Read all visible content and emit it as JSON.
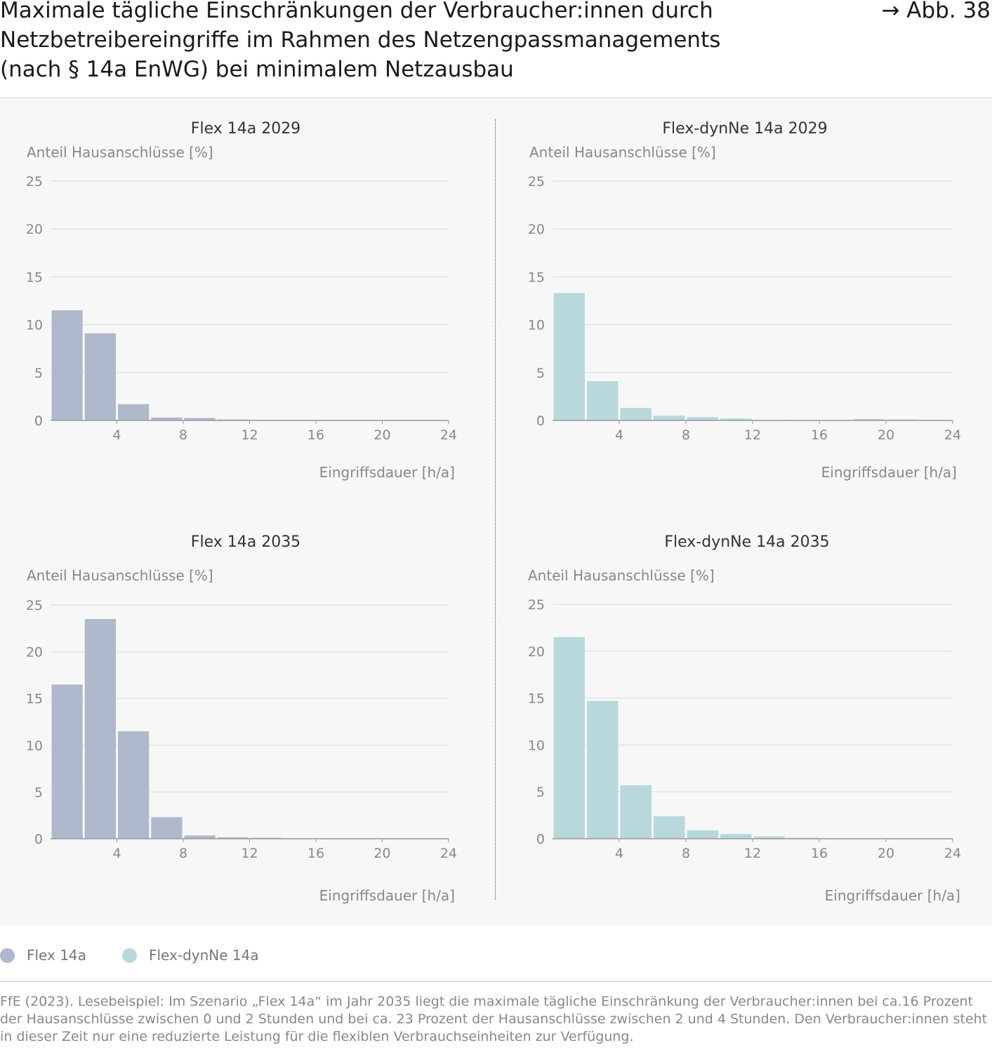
{
  "header": {
    "title": "Maximale tägliche Einschränkungen der Verbraucher:innen durch Netzbetreibereingriffe im Rahmen des Netzengpassmanagements (nach § 14a EnWG) bei minimalem Netzausbau",
    "figure_ref": "→ Abb. 38"
  },
  "colors": {
    "flex": "#b0b8cc",
    "dynne": "#b8d8dc",
    "grid": "#e4e4e4",
    "axis": "#999999"
  },
  "legend": {
    "items": [
      {
        "label": "Flex 14a",
        "color": "#b0b8cc"
      },
      {
        "label": "Flex-dynNe 14a",
        "color": "#b8d8dc"
      }
    ]
  },
  "chart_data": [
    {
      "type": "bar",
      "title": "Flex 14a 2029",
      "ylabel": "Anteil Hausanschlüsse [%]",
      "xlabel": "Eingriffsdauer [h/a]",
      "xlim": [
        0,
        24
      ],
      "ylim": [
        0,
        25
      ],
      "xticks": [
        4,
        8,
        12,
        16,
        20,
        24
      ],
      "yticks": [
        0,
        5,
        10,
        15,
        20,
        25
      ],
      "bin_width": 2,
      "series": [
        {
          "color": "#b0b8cc",
          "bins": [
            [
              0,
              11.5
            ],
            [
              2,
              9.1
            ],
            [
              4,
              1.7
            ],
            [
              6,
              0.3
            ],
            [
              8,
              0.25
            ],
            [
              10,
              0.1
            ]
          ]
        }
      ]
    },
    {
      "type": "bar",
      "title": "Flex-dynNe 14a 2029",
      "ylabel": "Anteil Hausanschlüsse [%]",
      "xlabel": "Eingriffsdauer [h/a]",
      "xlim": [
        0,
        24
      ],
      "ylim": [
        0,
        25
      ],
      "xticks": [
        4,
        8,
        12,
        16,
        20,
        24
      ],
      "yticks": [
        0,
        5,
        10,
        15,
        20,
        25
      ],
      "bin_width": 2,
      "series": [
        {
          "color": "#b8d8dc",
          "bins": [
            [
              0,
              13.3
            ],
            [
              2,
              4.1
            ],
            [
              4,
              1.3
            ],
            [
              6,
              0.5
            ],
            [
              8,
              0.35
            ],
            [
              10,
              0.2
            ],
            [
              12,
              0.05
            ],
            [
              14,
              0.05
            ],
            [
              16,
              0.05
            ],
            [
              18,
              0.15
            ],
            [
              20,
              0.1
            ]
          ]
        }
      ]
    },
    {
      "type": "bar",
      "title": "Flex 14a 2035",
      "ylabel": "Anteil Hausanschlüsse [%]",
      "xlabel": "Eingriffsdauer [h/a]",
      "xlim": [
        0,
        24
      ],
      "ylim": [
        0,
        25
      ],
      "xticks": [
        4,
        8,
        12,
        16,
        20,
        24
      ],
      "yticks": [
        0,
        5,
        10,
        15,
        20,
        25
      ],
      "bin_width": 2,
      "series": [
        {
          "color": "#b0b8cc",
          "bins": [
            [
              0,
              16.5
            ],
            [
              2,
              23.5
            ],
            [
              4,
              11.5
            ],
            [
              6,
              2.3
            ],
            [
              8,
              0.35
            ],
            [
              10,
              0.15
            ],
            [
              12,
              0.1
            ],
            [
              14,
              0.05
            ],
            [
              16,
              0.05
            ]
          ]
        }
      ]
    },
    {
      "type": "bar",
      "title": "Flex-dynNe 14a 2035",
      "ylabel": "Anteil Hausanschlüsse [%]",
      "xlabel": "Eingriffsdauer [h/a]",
      "xlim": [
        0,
        24
      ],
      "ylim": [
        0,
        25
      ],
      "xticks": [
        4,
        8,
        12,
        16,
        20,
        24
      ],
      "yticks": [
        0,
        5,
        10,
        15,
        20,
        25
      ],
      "bin_width": 2,
      "series": [
        {
          "color": "#b8d8dc",
          "bins": [
            [
              0,
              21.5
            ],
            [
              2,
              14.7
            ],
            [
              4,
              5.7
            ],
            [
              6,
              2.4
            ],
            [
              8,
              0.9
            ],
            [
              10,
              0.5
            ],
            [
              12,
              0.25
            ],
            [
              14,
              0.1
            ],
            [
              16,
              0.05
            ]
          ]
        }
      ]
    }
  ],
  "source": "FfE (2023). Lesebeispiel: Im Szenario „Flex 14a“ im Jahr 2035 liegt die maximale tägliche Einschränkung der Verbraucher:innen bei ca.16 Prozent der Hausanschlüsse zwischen 0 und 2 Stunden und bei ca. 23 Prozent der Hausanschlüsse zwischen 2 und 4 Stunden. Den Verbraucher:innen steht in dieser Zeit nur eine reduzierte Leistung für die flexiblen Verbrauchseinheiten zur Verfügung."
}
